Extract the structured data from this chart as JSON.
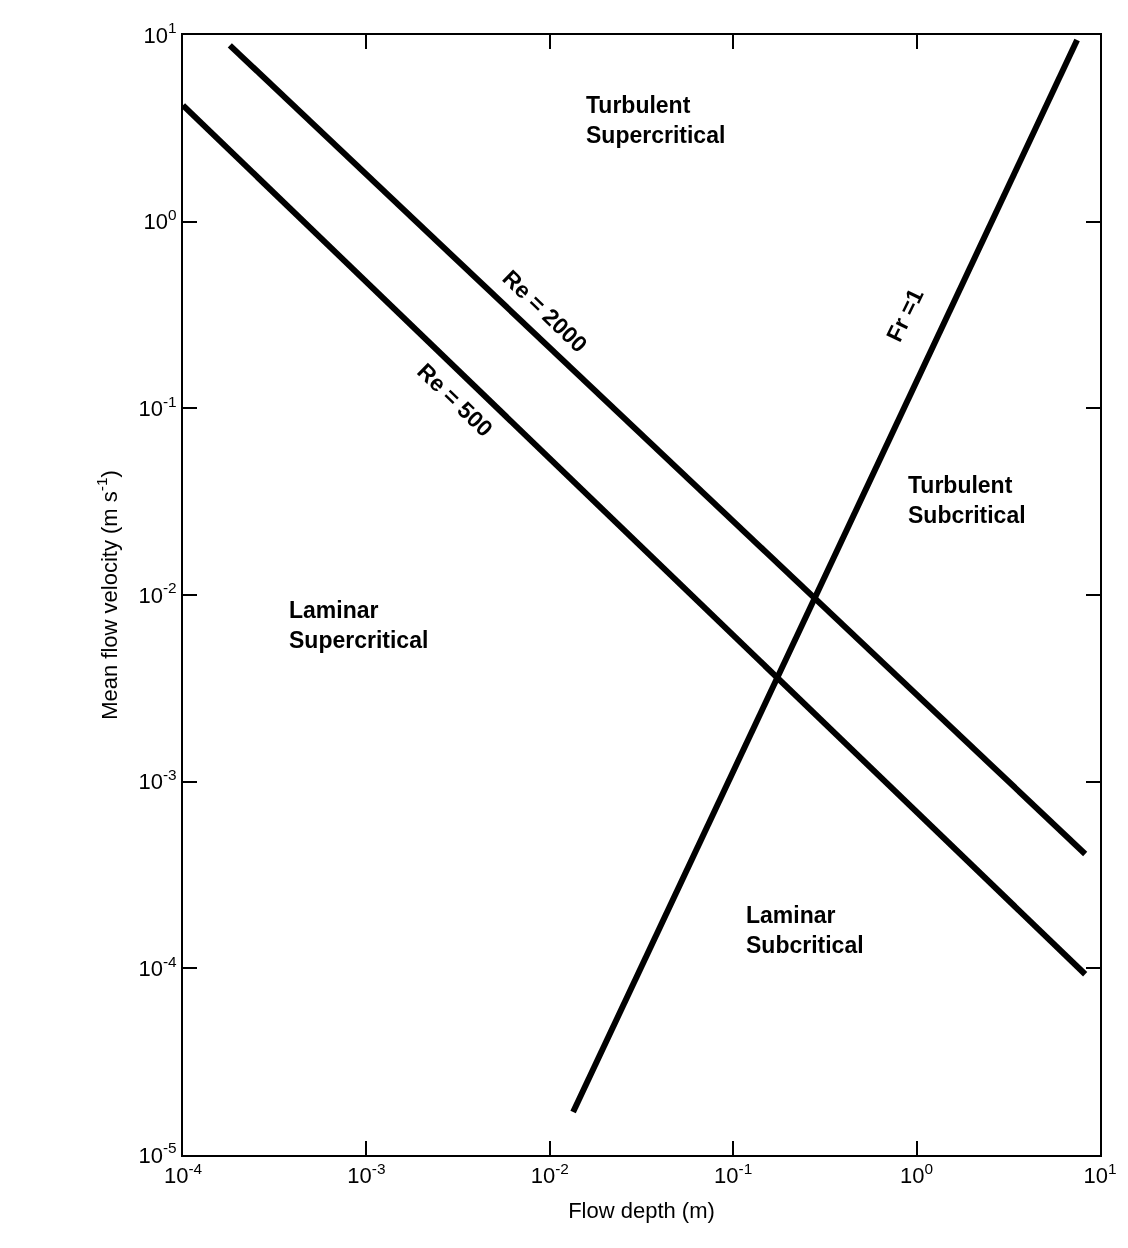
{
  "chart_data": {
    "type": "line",
    "xlabel": "Flow depth (m)",
    "ylabel": "Mean flow velocity (m s$^{-1}$)",
    "log": "xy",
    "marker": "none",
    "line_style": "solid",
    "xlim": [
      0.0001,
      10
    ],
    "ylim": [
      1e-05,
      10
    ],
    "xticks": [
      {
        "value": 0.0001,
        "label": "10$^{-4}$"
      },
      {
        "value": 0.001,
        "label": "10$^{-3}$"
      },
      {
        "value": 0.01,
        "label": "10$^{-2}$"
      },
      {
        "value": 0.1,
        "label": "10$^{-1}$"
      },
      {
        "value": 1,
        "label": "10$^{0}$"
      },
      {
        "value": 10,
        "label": "10$^{1}$"
      }
    ],
    "yticks": [
      {
        "value": 1e-05,
        "label": "10$^{-5}$"
      },
      {
        "value": 0.0001,
        "label": "10$^{-4}$"
      },
      {
        "value": 0.001,
        "label": "10$^{-3}$"
      },
      {
        "value": 0.01,
        "label": "10$^{-2}$"
      },
      {
        "value": 0.1,
        "label": "10$^{-1}$"
      },
      {
        "value": 1,
        "label": "10$^{0}$"
      },
      {
        "value": 10,
        "label": "10$^{1}$"
      }
    ],
    "series": [
      {
        "color": "#000000",
        "x": [
          0.0001,
          8.3
        ],
        "values": [
          4.2,
          9.3e-05
        ]
      },
      {
        "color": "#000000",
        "x": [
          0.00018,
          8.3
        ],
        "values": [
          8.8,
          0.00041
        ]
      },
      {
        "color": "#000000",
        "x": [
          0.0134,
          7.5
        ],
        "values": [
          1.7e-05,
          9.4
        ]
      }
    ],
    "annotations": [
      "Turbulent\nSupercritical",
      "Turbulent\nSubcritical",
      "Laminar\nSupercritical",
      "Laminar\nSubcritical",
      "Re = 2000",
      "Re = 500",
      "Fr =1"
    ]
  }
}
